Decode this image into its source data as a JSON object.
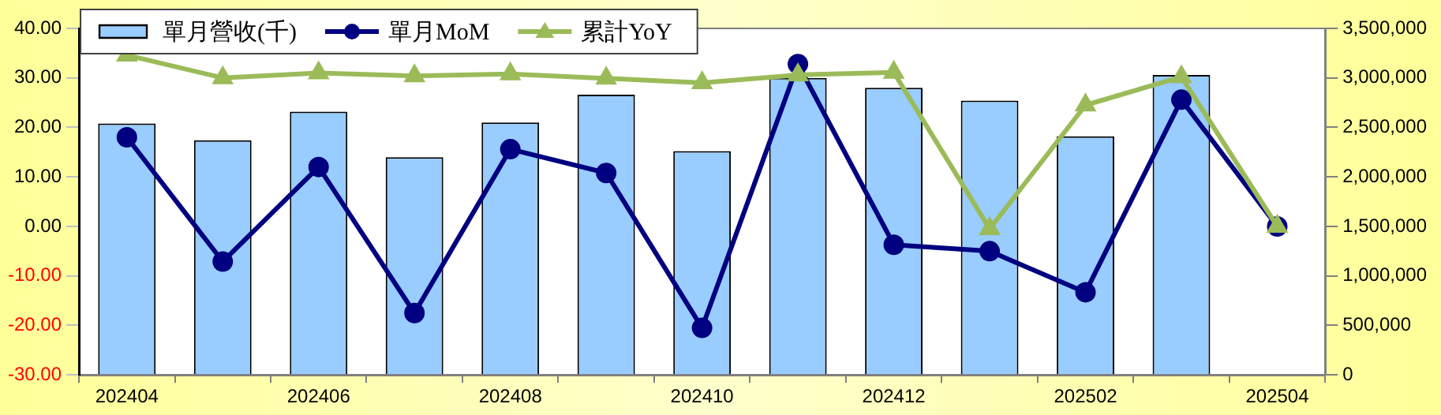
{
  "chart_data": {
    "type": "bar",
    "categories": [
      "202404",
      null,
      "202406",
      null,
      "202408",
      null,
      "202410",
      null,
      "202412",
      null,
      "202502",
      null,
      "202504"
    ],
    "series": [
      {
        "name": "單月營收(千)",
        "axis": "y2",
        "color": "#99ccff",
        "values": [
          2540000,
          2370000,
          2660000,
          2200000,
          2550000,
          2830000,
          2260000,
          3000000,
          2900000,
          2770000,
          2410000,
          3030000,
          null
        ]
      },
      {
        "name": "單月MoM",
        "type": "line",
        "marker": "circle",
        "color": "#000080",
        "values": [
          18.0,
          -7.1,
          12.0,
          -17.5,
          15.6,
          10.8,
          -20.5,
          32.8,
          -3.7,
          -5.0,
          -13.3,
          25.6,
          0.0
        ]
      },
      {
        "name": "累計YoY",
        "type": "line",
        "marker": "triangle",
        "color": "#9bbb59",
        "values": [
          34.6,
          30.0,
          31.0,
          30.4,
          30.8,
          29.9,
          29.0,
          30.6,
          31.1,
          -0.5,
          24.5,
          30.2,
          0.0
        ]
      }
    ],
    "ylim": [
      -30,
      40
    ],
    "yticks": [
      {
        "value": -30,
        "label": "-30.00"
      },
      {
        "value": -20,
        "label": "-20.00"
      },
      {
        "value": -10,
        "label": "-10.00"
      },
      {
        "value": 0,
        "label": "0.00"
      },
      {
        "value": 10,
        "label": "10.00"
      },
      {
        "value": 20,
        "label": "20.00"
      },
      {
        "value": 30,
        "label": "30.00"
      },
      {
        "value": 40,
        "label": "40.00"
      }
    ],
    "y2lim": [
      0,
      3500000
    ],
    "y2ticks": [
      0,
      {
        "value": 500000,
        "label": "500,000"
      },
      {
        "value": 1000000,
        "label": "1,000,000"
      },
      {
        "value": 1500000,
        "label": "1,500,000"
      },
      {
        "value": 2000000,
        "label": "2,000,000"
      },
      {
        "value": 2500000,
        "label": "2,500,000"
      },
      {
        "value": 3000000,
        "label": "3,000,000"
      },
      {
        "value": 3500000,
        "label": "3,500,000"
      }
    ],
    "legend": "top left"
  }
}
